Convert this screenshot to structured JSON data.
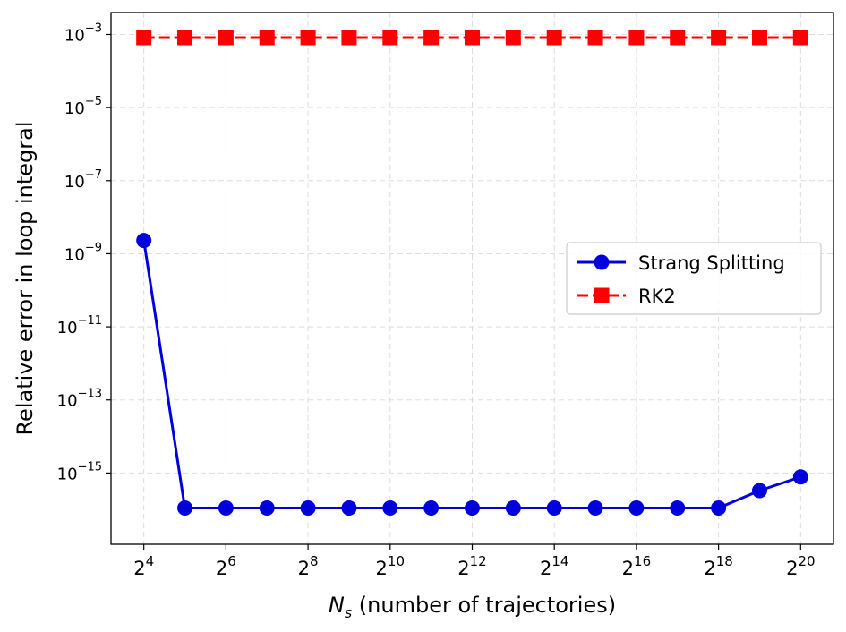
{
  "chart_data": {
    "type": "line",
    "xscale": "log2",
    "yscale": "log10",
    "x": [
      16,
      32,
      64,
      128,
      256,
      512,
      1024,
      2048,
      4096,
      8192,
      16384,
      32768,
      65536,
      131072,
      262144,
      524288,
      1048576
    ],
    "series": [
      {
        "name": "Strang Splitting",
        "color": "#0000dd",
        "marker": "circle",
        "linestyle": "solid",
        "values": [
          2.3e-09,
          1.1e-16,
          1.1e-16,
          1.1e-16,
          1.1e-16,
          1.1e-16,
          1.1e-16,
          1.1e-16,
          1.1e-16,
          1.1e-16,
          1.1e-16,
          1.1e-16,
          1.1e-16,
          1.1e-16,
          1.1e-16,
          3.3e-16,
          7.8e-16
        ]
      },
      {
        "name": "RK2",
        "color": "#ff0000",
        "marker": "square",
        "linestyle": "dashed",
        "values": [
          0.00082,
          0.00082,
          0.00082,
          0.00082,
          0.00082,
          0.00082,
          0.00082,
          0.00082,
          0.00082,
          0.00082,
          0.00082,
          0.00082,
          0.00082,
          0.00082,
          0.00082,
          0.00082,
          0.00082
        ]
      }
    ],
    "xlim_log2": [
      3.2,
      20.8
    ],
    "ylim_log10": [
      -16.95,
      -2.4
    ],
    "xticks": [
      {
        "base": "2",
        "exp": "4",
        "log2": 4
      },
      {
        "base": "2",
        "exp": "6",
        "log2": 6
      },
      {
        "base": "2",
        "exp": "8",
        "log2": 8
      },
      {
        "base": "2",
        "exp": "10",
        "log2": 10
      },
      {
        "base": "2",
        "exp": "12",
        "log2": 12
      },
      {
        "base": "2",
        "exp": "14",
        "log2": 14
      },
      {
        "base": "2",
        "exp": "16",
        "log2": 16
      },
      {
        "base": "2",
        "exp": "18",
        "log2": 18
      },
      {
        "base": "2",
        "exp": "20",
        "log2": 20
      }
    ],
    "yticks": [
      {
        "base": "10",
        "exp": "−3",
        "log10": -3
      },
      {
        "base": "10",
        "exp": "−5",
        "log10": -5
      },
      {
        "base": "10",
        "exp": "−7",
        "log10": -7
      },
      {
        "base": "10",
        "exp": "−9",
        "log10": -9
      },
      {
        "base": "10",
        "exp": "−11",
        "log10": -11
      },
      {
        "base": "10",
        "exp": "−13",
        "log10": -13
      },
      {
        "base": "10",
        "exp": "−15",
        "log10": -15
      }
    ],
    "xlabel": {
      "symbol": "N",
      "subscript": "s",
      "rest": " (number of trajectories)"
    },
    "ylabel": "Relative error in loop integral",
    "grid": true,
    "legend": "center-right"
  }
}
